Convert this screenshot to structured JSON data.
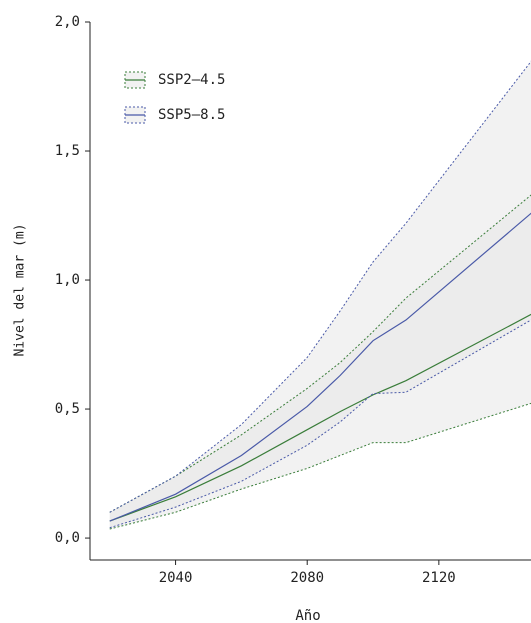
{
  "chart_data": {
    "type": "line",
    "x_label": "Año",
    "y_label": "Nivel del mar (m)",
    "x": [
      2020,
      2040,
      2060,
      2080,
      2090,
      2100,
      2110,
      2150
    ],
    "series": [
      {
        "name": "SSP2–4.5",
        "color": "#3a7d3a",
        "values": [
          0.066,
          0.16,
          0.28,
          0.42,
          0.49,
          0.555,
          0.61,
          0.88
        ],
        "lower": [
          0.035,
          0.1,
          0.19,
          0.27,
          0.32,
          0.37,
          0.37,
          0.53
        ],
        "upper": [
          0.1,
          0.24,
          0.4,
          0.58,
          0.68,
          0.8,
          0.93,
          1.35
        ]
      },
      {
        "name": "SSP5–8.5",
        "color": "#4a5aa8",
        "values": [
          0.066,
          0.17,
          0.32,
          0.51,
          0.63,
          0.765,
          0.845,
          1.28
        ],
        "lower": [
          0.04,
          0.12,
          0.22,
          0.36,
          0.45,
          0.56,
          0.565,
          0.86
        ],
        "upper": [
          0.1,
          0.24,
          0.44,
          0.7,
          0.88,
          1.07,
          1.22,
          1.88
        ]
      }
    ],
    "xlim": [
      2014,
      2148
    ],
    "xticks": [
      2040,
      2080,
      2120
    ],
    "ylim": [
      -0.085,
      2
    ],
    "yticks": [
      {
        "value": 0,
        "label": "0,0"
      },
      {
        "value": 0.5,
        "label": "0,5"
      },
      {
        "value": 1,
        "label": "1,0"
      },
      {
        "value": 1.5,
        "label": "1,5"
      },
      {
        "value": 2,
        "label": "2,0"
      }
    ]
  }
}
